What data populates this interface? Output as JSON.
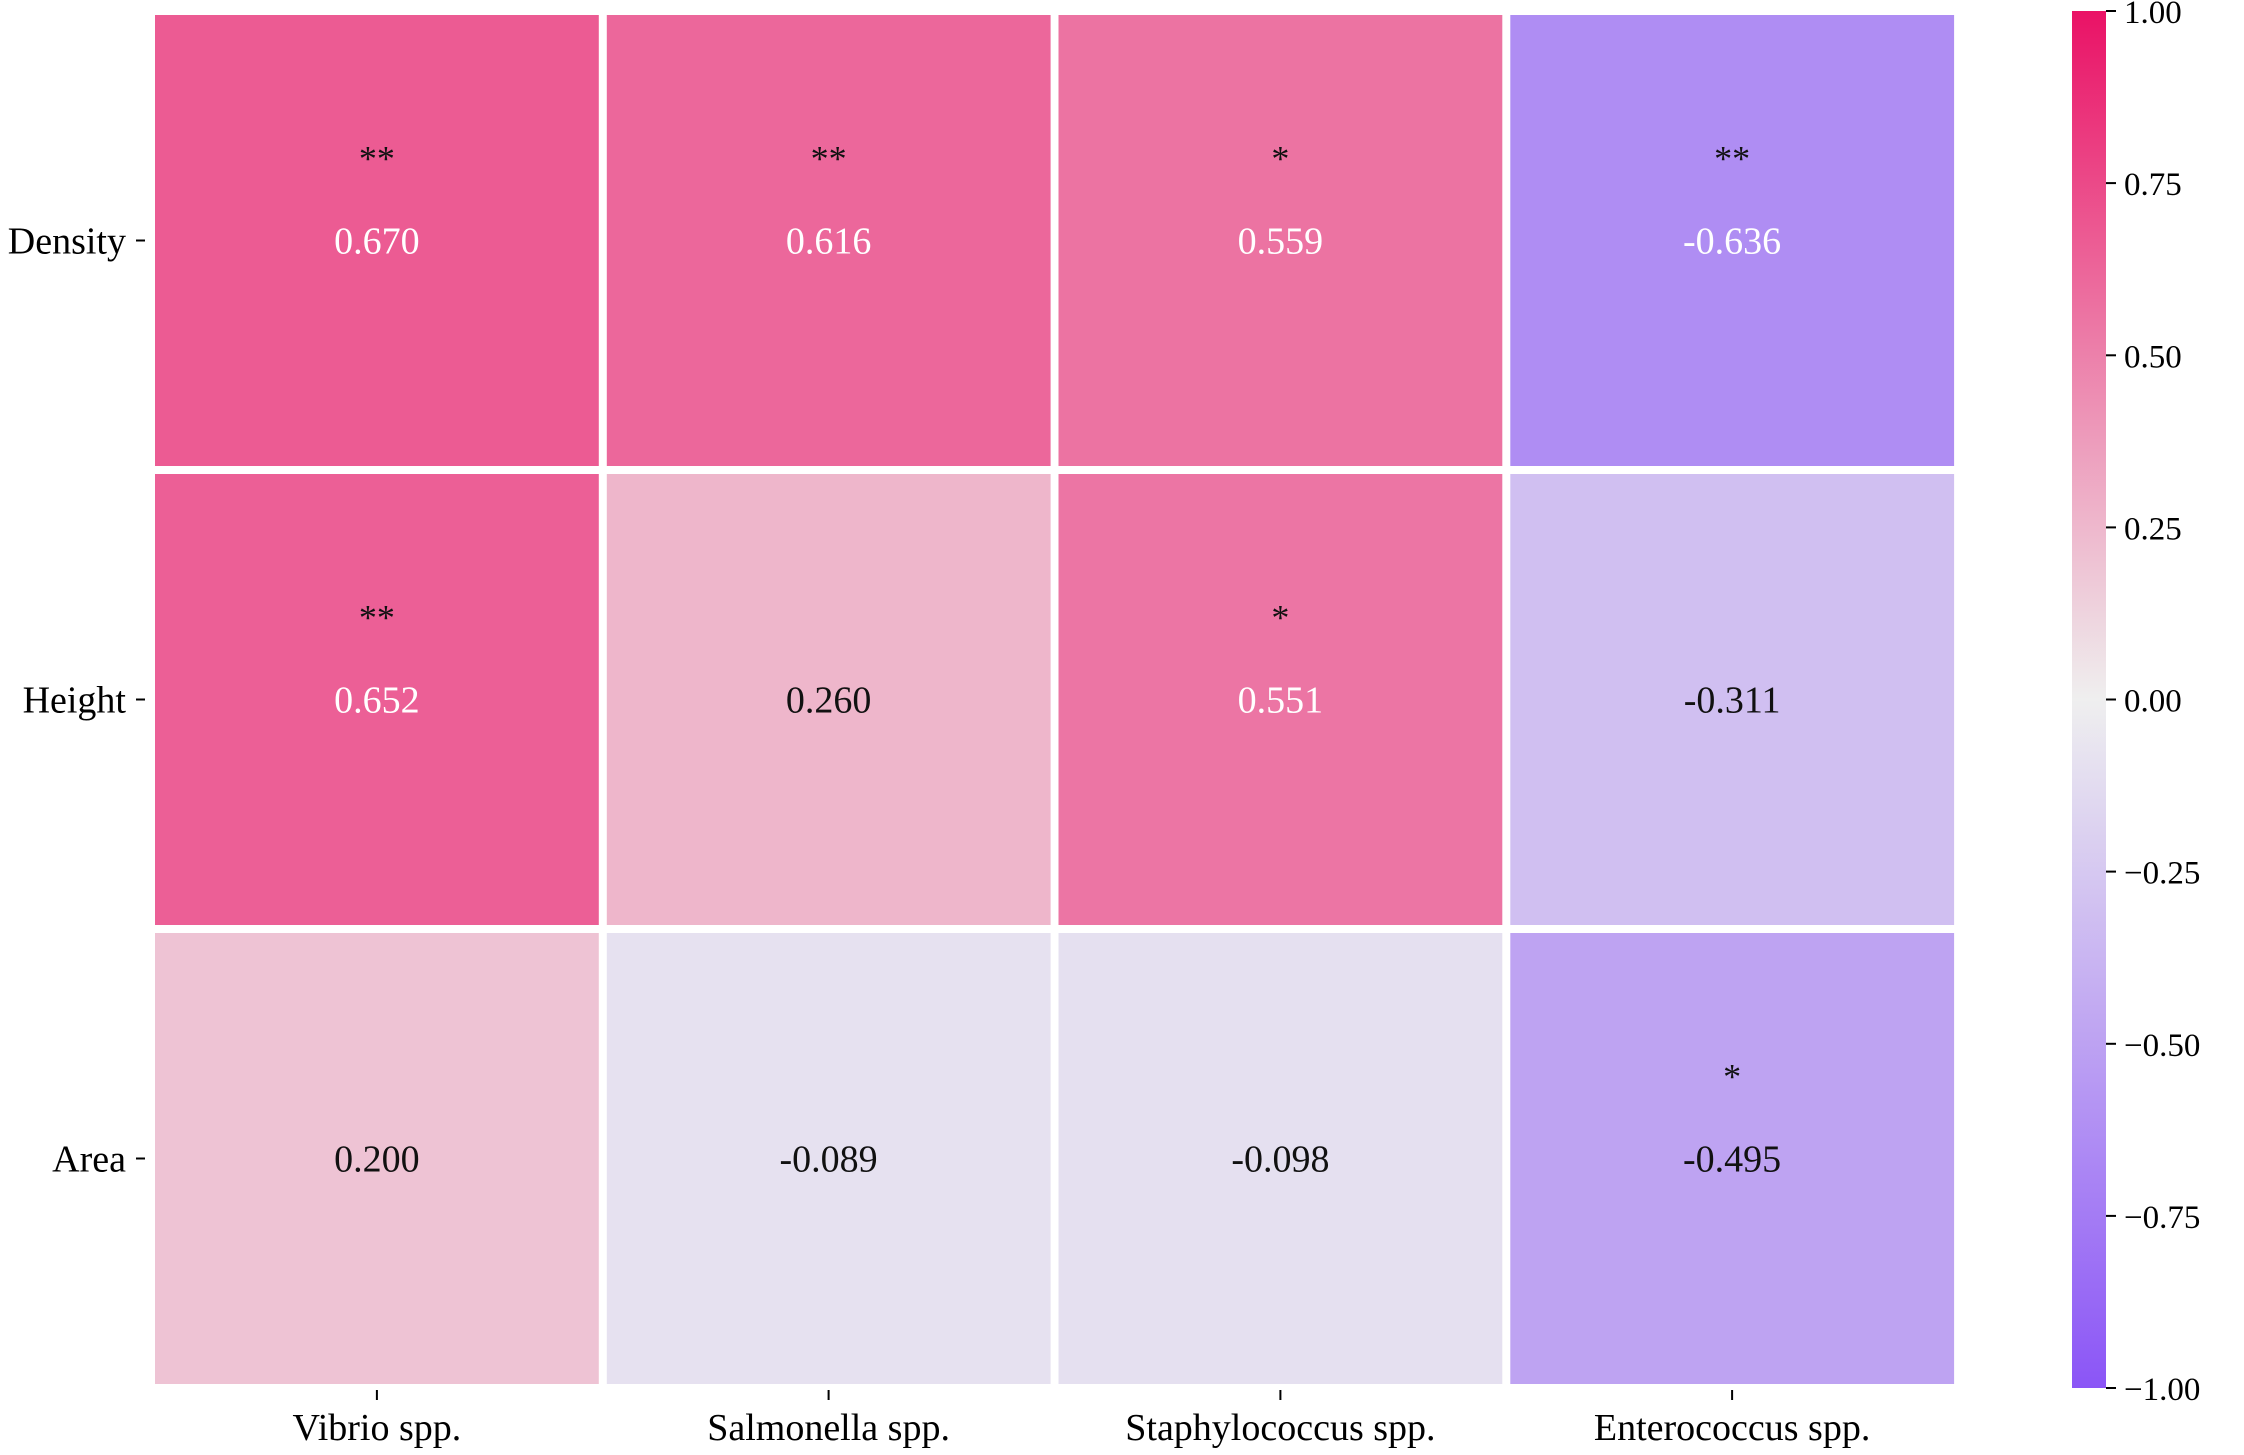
{
  "chart_data": {
    "type": "heatmap",
    "title": "",
    "xlabel": "",
    "ylabel": "",
    "rows": [
      "Density",
      "Height",
      "Area"
    ],
    "columns": [
      "Vibrio spp.",
      "Salmonella spp.",
      "Staphylococcus spp.",
      "Enterococcus spp."
    ],
    "values": [
      [
        0.67,
        0.616,
        0.559,
        -0.636
      ],
      [
        0.652,
        0.26,
        0.551,
        -0.311
      ],
      [
        0.2,
        -0.089,
        -0.098,
        -0.495
      ]
    ],
    "value_labels": [
      [
        "0.670",
        "0.616",
        "0.559",
        "-0.636"
      ],
      [
        "0.652",
        "0.260",
        "0.551",
        "-0.311"
      ],
      [
        "0.200",
        "-0.089",
        "-0.098",
        "-0.495"
      ]
    ],
    "significance": [
      [
        "**",
        "**",
        "*",
        "**"
      ],
      [
        "**",
        "",
        "*",
        ""
      ],
      [
        "",
        "",
        "",
        "*"
      ]
    ],
    "colorbar": {
      "range": [
        -1.0,
        1.0
      ],
      "ticks": [
        1.0,
        0.75,
        0.5,
        0.25,
        0.0,
        -0.25,
        -0.5,
        -0.75,
        -1.0
      ],
      "tick_labels": [
        "1.00",
        "0.75",
        "0.50",
        "0.25",
        "0.00",
        "−0.25",
        "−0.50",
        "−0.75",
        "−1.00"
      ],
      "color_min": "#8b55f6",
      "color_mid": "#efefef",
      "color_max": "#ea1266"
    },
    "grid": false,
    "legend": "colorbar-right"
  }
}
